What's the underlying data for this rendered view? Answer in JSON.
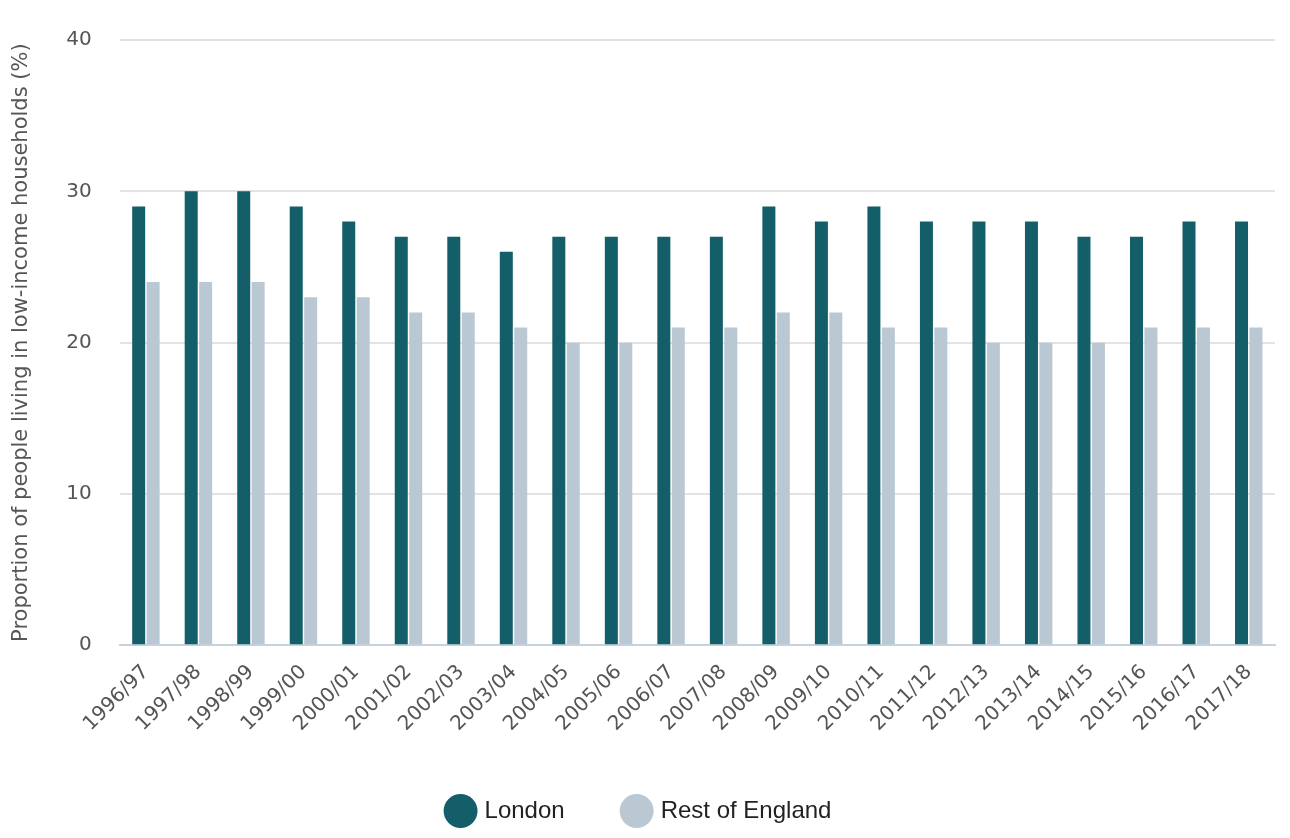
{
  "chart_data": {
    "type": "bar",
    "ylabel": "Proportion of people living in low-income households (%)",
    "categories": [
      "1996/97",
      "1997/98",
      "1998/99",
      "1999/00",
      "2000/01",
      "2001/02",
      "2002/03",
      "2003/04",
      "2004/05",
      "2005/06",
      "2006/07",
      "2007/08",
      "2008/09",
      "2009/10",
      "2010/11",
      "2011/12",
      "2012/13",
      "2013/14",
      "2014/15",
      "2015/16",
      "2016/17",
      "2017/18"
    ],
    "series": [
      {
        "name": "London",
        "color": "#135e68",
        "values": [
          29,
          30,
          30,
          29,
          28,
          27,
          27,
          26,
          27,
          27,
          27,
          27,
          29,
          28,
          29,
          28,
          28,
          28,
          27,
          27,
          28,
          28
        ]
      },
      {
        "name": "Rest of England",
        "color": "#bac8d4",
        "values": [
          24,
          24,
          24,
          23,
          23,
          22,
          22,
          21,
          20,
          20,
          21,
          21,
          22,
          22,
          21,
          21,
          20,
          20,
          20,
          21,
          21,
          21
        ]
      }
    ],
    "ylim": [
      0,
      40
    ],
    "yticks": [
      0,
      10,
      20,
      30,
      40
    ],
    "grid": "y",
    "legend": "bottom"
  }
}
